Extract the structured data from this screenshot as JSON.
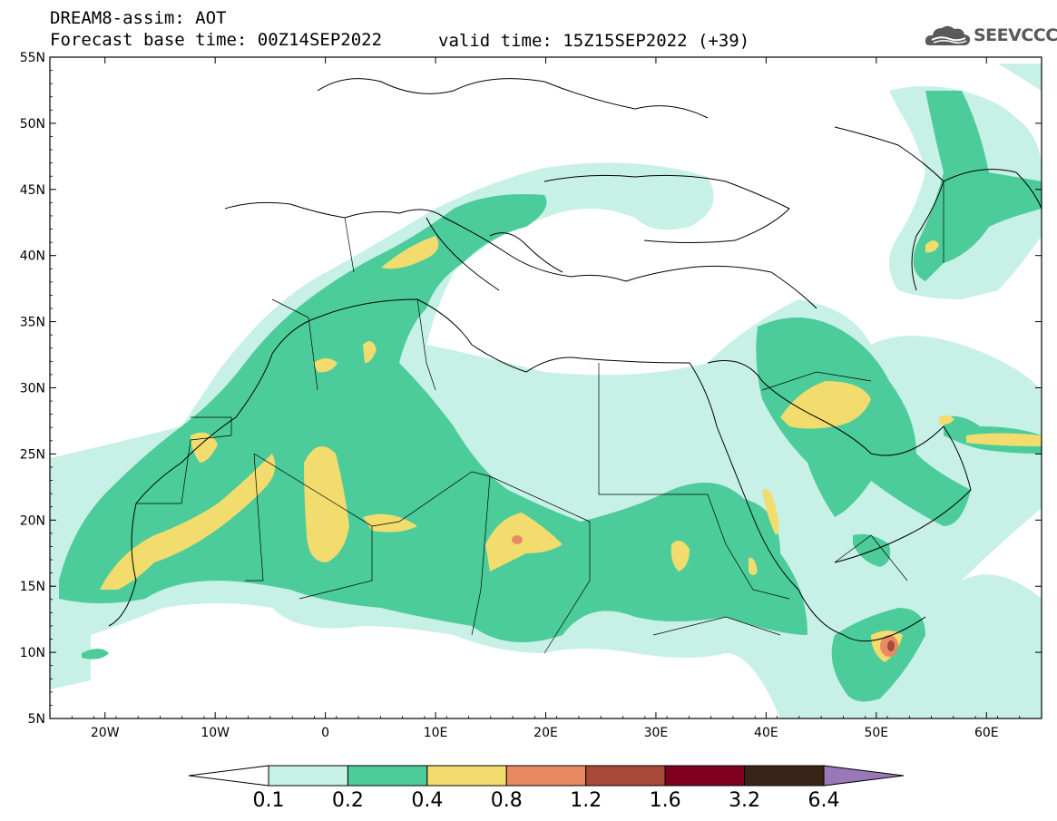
{
  "header": {
    "title_line1": "DREAM8-assim: AOT",
    "title_line2": "Forecast base time: 00Z14SEP2022",
    "valid_time": "valid time: 15Z15SEP2022 (+39)",
    "logo_text": "SEEVCCC",
    "logo_icon": "cloud-logo-icon"
  },
  "map": {
    "lon_range": [
      -25,
      65
    ],
    "lat_range": [
      5,
      55
    ],
    "lat_labels": [
      "55N",
      "50N",
      "45N",
      "40N",
      "35N",
      "30N",
      "25N",
      "20N",
      "15N",
      "10N",
      "5N"
    ],
    "lon_labels": [
      "20W",
      "10W",
      "0",
      "10E",
      "20E",
      "30E",
      "40E",
      "50E",
      "60E"
    ],
    "grid": false,
    "field": "Aerosol optical thickness"
  },
  "colorbar": {
    "levels": [
      "0.1",
      "0.2",
      "0.4",
      "0.8",
      "1.2",
      "1.6",
      "3.2",
      "6.4"
    ],
    "colors": [
      "#c7f0e6",
      "#4ccc9a",
      "#f2dc6e",
      "#e88a62",
      "#a84a3a",
      "#800020",
      "#3a2418",
      "#9a78b8"
    ],
    "under_color": "#ffffff",
    "over_color": "#9a78b8"
  }
}
